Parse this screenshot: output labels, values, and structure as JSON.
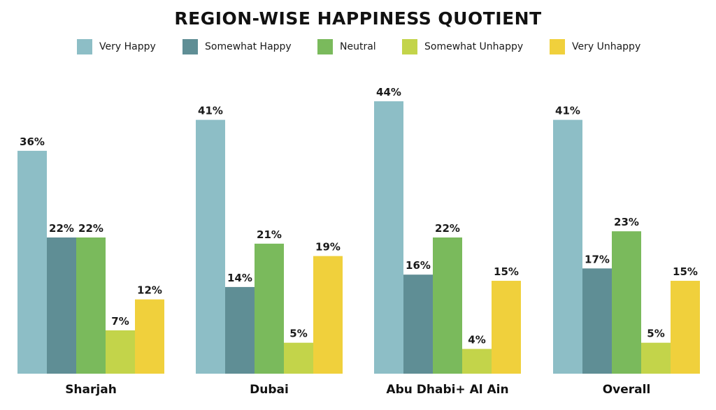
{
  "chart_data": {
    "type": "bar",
    "title": "REGION-WISE HAPPINESS QUOTIENT",
    "categories": [
      "Sharjah",
      "Dubai",
      "Abu Dhabi+ Al Ain",
      "Overall"
    ],
    "series": [
      {
        "name": "Very Happy",
        "color": "#8dbec6",
        "values": [
          36,
          41,
          44,
          41
        ],
        "labels": [
          "36%",
          "41%",
          "44%",
          "41%"
        ]
      },
      {
        "name": "Somewhat Happy",
        "color": "#5f8e95",
        "values": [
          22,
          14,
          16,
          17
        ],
        "labels": [
          "22%",
          "14%",
          "16%",
          "17%"
        ]
      },
      {
        "name": "Neutral",
        "color": "#7aba5c",
        "values": [
          22,
          21,
          22,
          23
        ],
        "labels": [
          "22%",
          "21%",
          "22%",
          "23%"
        ]
      },
      {
        "name": "Somewhat Unhappy",
        "color": "#c3d44a",
        "values": [
          7,
          5,
          4,
          5
        ],
        "labels": [
          "7%",
          "5%",
          "4%",
          "5%"
        ]
      },
      {
        "name": "Very Unhappy",
        "color": "#f0d03c",
        "values": [
          12,
          19,
          15,
          15
        ],
        "labels": [
          "12%",
          "19%",
          "15%",
          "15%"
        ]
      }
    ],
    "legend": "top",
    "ylim": [
      0,
      44
    ],
    "grid": false,
    "xlabel": "",
    "ylabel": ""
  }
}
